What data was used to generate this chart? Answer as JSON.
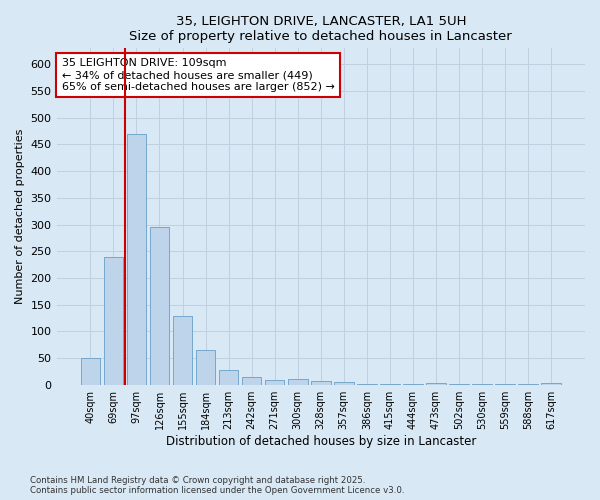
{
  "title1": "35, LEIGHTON DRIVE, LANCASTER, LA1 5UH",
  "title2": "Size of property relative to detached houses in Lancaster",
  "xlabel": "Distribution of detached houses by size in Lancaster",
  "ylabel": "Number of detached properties",
  "bar_labels": [
    "40sqm",
    "69sqm",
    "97sqm",
    "126sqm",
    "155sqm",
    "184sqm",
    "213sqm",
    "242sqm",
    "271sqm",
    "300sqm",
    "328sqm",
    "357sqm",
    "386sqm",
    "415sqm",
    "444sqm",
    "473sqm",
    "502sqm",
    "530sqm",
    "559sqm",
    "588sqm",
    "617sqm"
  ],
  "bar_values": [
    50,
    240,
    470,
    295,
    128,
    65,
    27,
    15,
    8,
    10,
    7,
    6,
    2,
    2,
    1,
    4,
    1,
    1,
    1,
    1,
    4
  ],
  "bar_color": "#bdd4ea",
  "bar_edge_color": "#6a9ec8",
  "vline_color": "#cc0000",
  "annotation_text": "35 LEIGHTON DRIVE: 109sqm\n← 34% of detached houses are smaller (449)\n65% of semi-detached houses are larger (852) →",
  "annotation_box_color": "#ffffff",
  "annotation_box_edge": "#cc0000",
  "bg_color": "#d8e8f5",
  "plot_bg_color": "#d8e8f5",
  "footer1": "Contains HM Land Registry data © Crown copyright and database right 2025.",
  "footer2": "Contains public sector information licensed under the Open Government Licence v3.0.",
  "ylim": [
    0,
    630
  ],
  "yticks": [
    0,
    50,
    100,
    150,
    200,
    250,
    300,
    350,
    400,
    450,
    500,
    550,
    600
  ]
}
